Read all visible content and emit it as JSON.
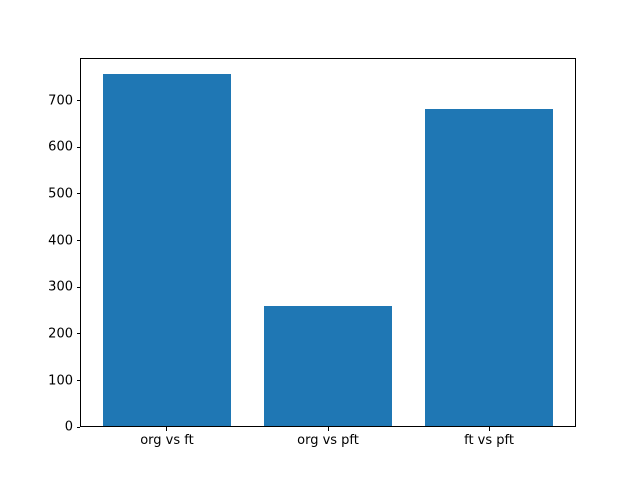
{
  "chart_data": {
    "type": "bar",
    "title": "",
    "xlabel": "",
    "ylabel": "",
    "categories": [
      "org vs ft",
      "org vs pft",
      "ft vs pft"
    ],
    "values": [
      755,
      258,
      680
    ],
    "ylim": [
      0,
      792
    ],
    "yticks": [
      0,
      100,
      200,
      300,
      400,
      500,
      600,
      700
    ],
    "bar_color": "#1f77b4",
    "axis_color": "#000000",
    "background_color": "#ffffff",
    "grid": false,
    "legend_position": "none"
  }
}
